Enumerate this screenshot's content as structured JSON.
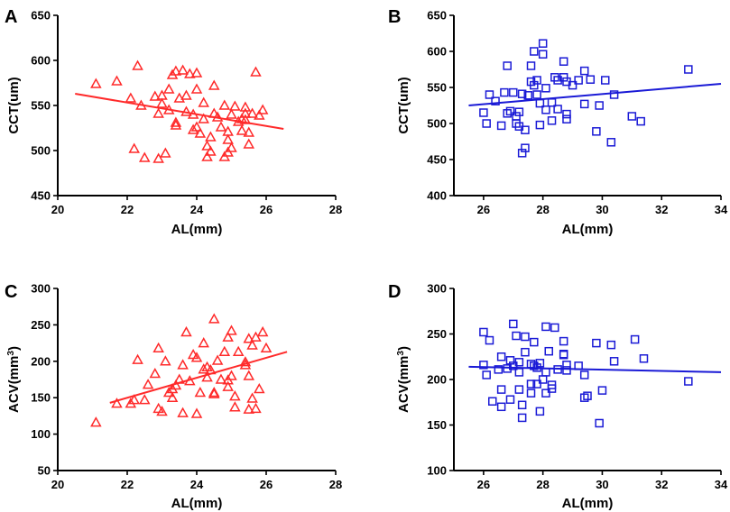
{
  "chart_data": [
    {
      "panel": "A",
      "type": "scatter",
      "xlabel": "AL(mm)",
      "ylabel": "CCT(um)",
      "xlim": [
        20,
        28
      ],
      "ylim": [
        450,
        650
      ],
      "xticks": [
        20,
        22,
        24,
        26,
        28
      ],
      "yticks": [
        450,
        500,
        550,
        600,
        650
      ],
      "marker": "triangle",
      "color": "#ff2a2a",
      "fit": {
        "x": [
          20.5,
          26.5
        ],
        "y": [
          563,
          524
        ]
      },
      "points": [
        [
          21.1,
          574
        ],
        [
          21.7,
          577
        ],
        [
          22.1,
          558
        ],
        [
          22.3,
          594
        ],
        [
          22.2,
          502
        ],
        [
          22.4,
          550
        ],
        [
          22.5,
          492
        ],
        [
          22.8,
          560
        ],
        [
          22.9,
          491
        ],
        [
          22.9,
          541
        ],
        [
          23.0,
          561
        ],
        [
          23.0,
          552
        ],
        [
          23.1,
          497
        ],
        [
          23.2,
          568
        ],
        [
          23.2,
          545
        ],
        [
          23.3,
          584
        ],
        [
          23.4,
          588
        ],
        [
          23.4,
          531
        ],
        [
          23.4,
          528
        ],
        [
          23.5,
          558
        ],
        [
          23.6,
          589
        ],
        [
          23.7,
          543
        ],
        [
          23.7,
          561
        ],
        [
          23.8,
          585
        ],
        [
          23.9,
          523
        ],
        [
          23.9,
          540
        ],
        [
          24.0,
          526
        ],
        [
          24.0,
          568
        ],
        [
          24.0,
          586
        ],
        [
          24.1,
          519
        ],
        [
          24.2,
          535
        ],
        [
          24.2,
          553
        ],
        [
          24.3,
          505
        ],
        [
          24.3,
          493
        ],
        [
          24.4,
          499
        ],
        [
          24.4,
          515
        ],
        [
          24.5,
          572
        ],
        [
          24.5,
          541
        ],
        [
          24.6,
          537
        ],
        [
          24.7,
          526
        ],
        [
          24.8,
          493
        ],
        [
          24.8,
          550
        ],
        [
          24.9,
          498
        ],
        [
          24.9,
          512
        ],
        [
          24.9,
          521
        ],
        [
          25.0,
          503
        ],
        [
          25.0,
          540
        ],
        [
          25.1,
          549
        ],
        [
          25.2,
          532
        ],
        [
          25.3,
          535
        ],
        [
          25.3,
          522
        ],
        [
          25.4,
          548
        ],
        [
          25.4,
          541
        ],
        [
          25.4,
          534
        ],
        [
          25.5,
          507
        ],
        [
          25.5,
          520
        ],
        [
          25.6,
          541
        ],
        [
          25.7,
          587
        ],
        [
          25.8,
          539
        ],
        [
          25.9,
          545
        ]
      ]
    },
    {
      "panel": "B",
      "type": "scatter",
      "xlabel": "AL(mm)",
      "ylabel": "CCT(um)",
      "xlim": [
        25,
        34
      ],
      "ylim": [
        400,
        650
      ],
      "xticks": [
        26,
        28,
        30,
        32,
        34
      ],
      "yticks": [
        400,
        450,
        500,
        550,
        600,
        650
      ],
      "marker": "square",
      "color": "#1a1ad6",
      "fit": {
        "x": [
          25.5,
          34
        ],
        "y": [
          525,
          555
        ]
      },
      "points": [
        [
          26.0,
          515
        ],
        [
          26.1,
          500
        ],
        [
          26.2,
          540
        ],
        [
          26.4,
          531
        ],
        [
          26.6,
          497
        ],
        [
          26.7,
          543
        ],
        [
          26.8,
          514
        ],
        [
          26.8,
          580
        ],
        [
          26.9,
          517
        ],
        [
          27.0,
          543
        ],
        [
          27.1,
          510
        ],
        [
          27.1,
          500
        ],
        [
          27.2,
          516
        ],
        [
          27.2,
          496
        ],
        [
          27.3,
          541
        ],
        [
          27.3,
          459
        ],
        [
          27.4,
          466
        ],
        [
          27.4,
          491
        ],
        [
          27.5,
          539
        ],
        [
          27.6,
          558
        ],
        [
          27.6,
          580
        ],
        [
          27.7,
          600
        ],
        [
          27.7,
          553
        ],
        [
          27.8,
          560
        ],
        [
          27.8,
          540
        ],
        [
          27.9,
          528
        ],
        [
          27.9,
          498
        ],
        [
          28.0,
          611
        ],
        [
          28.0,
          596
        ],
        [
          28.1,
          549
        ],
        [
          28.1,
          519
        ],
        [
          28.3,
          529
        ],
        [
          28.3,
          504
        ],
        [
          28.4,
          564
        ],
        [
          28.5,
          560
        ],
        [
          28.5,
          520
        ],
        [
          28.7,
          586
        ],
        [
          28.7,
          564
        ],
        [
          28.8,
          558
        ],
        [
          28.8,
          513
        ],
        [
          28.8,
          506
        ],
        [
          29.0,
          553
        ],
        [
          29.2,
          560
        ],
        [
          29.4,
          573
        ],
        [
          29.4,
          527
        ],
        [
          29.6,
          561
        ],
        [
          29.8,
          489
        ],
        [
          29.9,
          525
        ],
        [
          30.1,
          560
        ],
        [
          30.3,
          474
        ],
        [
          30.4,
          540
        ],
        [
          31.0,
          510
        ],
        [
          31.3,
          503
        ],
        [
          32.9,
          575
        ]
      ]
    },
    {
      "panel": "C",
      "type": "scatter",
      "xlabel": "AL(mm)",
      "ylabel": "ACV(mm",
      "ylabel_sup": "3",
      "ylabel_end": ")",
      "xlim": [
        20,
        28
      ],
      "ylim": [
        50,
        300
      ],
      "xticks": [
        20,
        22,
        24,
        26,
        28
      ],
      "yticks": [
        50,
        100,
        150,
        200,
        250,
        300
      ],
      "marker": "triangle",
      "color": "#ff2a2a",
      "fit": {
        "x": [
          21.5,
          26.6
        ],
        "y": [
          143,
          213
        ]
      },
      "points": [
        [
          21.1,
          116
        ],
        [
          21.7,
          142
        ],
        [
          22.1,
          142
        ],
        [
          22.2,
          147
        ],
        [
          22.3,
          202
        ],
        [
          22.5,
          147
        ],
        [
          22.6,
          168
        ],
        [
          22.8,
          183
        ],
        [
          22.9,
          135
        ],
        [
          22.9,
          218
        ],
        [
          23.0,
          131
        ],
        [
          23.1,
          200
        ],
        [
          23.2,
          157
        ],
        [
          23.3,
          150
        ],
        [
          23.3,
          162
        ],
        [
          23.4,
          167
        ],
        [
          23.5,
          175
        ],
        [
          23.6,
          129
        ],
        [
          23.6,
          195
        ],
        [
          23.7,
          240
        ],
        [
          23.8,
          173
        ],
        [
          23.9,
          209
        ],
        [
          24.0,
          205
        ],
        [
          24.0,
          128
        ],
        [
          24.1,
          157
        ],
        [
          24.2,
          189
        ],
        [
          24.2,
          225
        ],
        [
          24.3,
          178
        ],
        [
          24.3,
          192
        ],
        [
          24.4,
          188
        ],
        [
          24.5,
          157
        ],
        [
          24.5,
          155
        ],
        [
          24.5,
          258
        ],
        [
          24.6,
          201
        ],
        [
          24.7,
          175
        ],
        [
          24.8,
          213
        ],
        [
          24.9,
          165
        ],
        [
          24.9,
          174
        ],
        [
          24.9,
          233
        ],
        [
          25.0,
          242
        ],
        [
          25.0,
          180
        ],
        [
          25.1,
          137
        ],
        [
          25.1,
          152
        ],
        [
          25.2,
          213
        ],
        [
          25.4,
          195
        ],
        [
          25.4,
          199
        ],
        [
          25.5,
          180
        ],
        [
          25.5,
          231
        ],
        [
          25.5,
          134
        ],
        [
          25.6,
          149
        ],
        [
          25.6,
          222
        ],
        [
          25.7,
          233
        ],
        [
          25.7,
          135
        ],
        [
          25.8,
          162
        ],
        [
          25.9,
          240
        ],
        [
          26.0,
          218
        ]
      ]
    },
    {
      "panel": "D",
      "type": "scatter",
      "xlabel": "AL(mm)",
      "ylabel": "ACV(mm",
      "ylabel_sup": "3",
      "ylabel_end": ")",
      "xlim": [
        25,
        34
      ],
      "ylim": [
        100,
        300
      ],
      "xticks": [
        26,
        28,
        30,
        32,
        34
      ],
      "yticks": [
        100,
        150,
        200,
        250,
        300
      ],
      "marker": "square",
      "color": "#1a1ad6",
      "fit": {
        "x": [
          25.5,
          34
        ],
        "y": [
          214,
          208
        ]
      },
      "points": [
        [
          26.0,
          252
        ],
        [
          26.0,
          216
        ],
        [
          26.1,
          205
        ],
        [
          26.2,
          243
        ],
        [
          26.3,
          176
        ],
        [
          26.5,
          211
        ],
        [
          26.6,
          189
        ],
        [
          26.6,
          170
        ],
        [
          26.6,
          225
        ],
        [
          26.8,
          212
        ],
        [
          26.9,
          221
        ],
        [
          26.9,
          178
        ],
        [
          27.0,
          261
        ],
        [
          27.0,
          215
        ],
        [
          27.1,
          248
        ],
        [
          27.2,
          219
        ],
        [
          27.2,
          208
        ],
        [
          27.2,
          189
        ],
        [
          27.3,
          158
        ],
        [
          27.3,
          172
        ],
        [
          27.4,
          230
        ],
        [
          27.4,
          247
        ],
        [
          27.6,
          217
        ],
        [
          27.6,
          185
        ],
        [
          27.6,
          195
        ],
        [
          27.7,
          241
        ],
        [
          27.7,
          215
        ],
        [
          27.8,
          213
        ],
        [
          27.8,
          195
        ],
        [
          27.9,
          165
        ],
        [
          27.9,
          218
        ],
        [
          28.0,
          200
        ],
        [
          28.1,
          258
        ],
        [
          28.1,
          208
        ],
        [
          28.1,
          185
        ],
        [
          28.2,
          231
        ],
        [
          28.3,
          194
        ],
        [
          28.3,
          190
        ],
        [
          28.4,
          257
        ],
        [
          28.5,
          211
        ],
        [
          28.7,
          242
        ],
        [
          28.7,
          228
        ],
        [
          28.7,
          227
        ],
        [
          28.8,
          216
        ],
        [
          28.8,
          210
        ],
        [
          29.2,
          215
        ],
        [
          29.4,
          205
        ],
        [
          29.4,
          180
        ],
        [
          29.5,
          182
        ],
        [
          29.8,
          240
        ],
        [
          29.9,
          152
        ],
        [
          30.0,
          188
        ],
        [
          30.3,
          238
        ],
        [
          30.4,
          220
        ],
        [
          31.1,
          244
        ],
        [
          31.4,
          223
        ],
        [
          32.9,
          198
        ]
      ]
    }
  ]
}
